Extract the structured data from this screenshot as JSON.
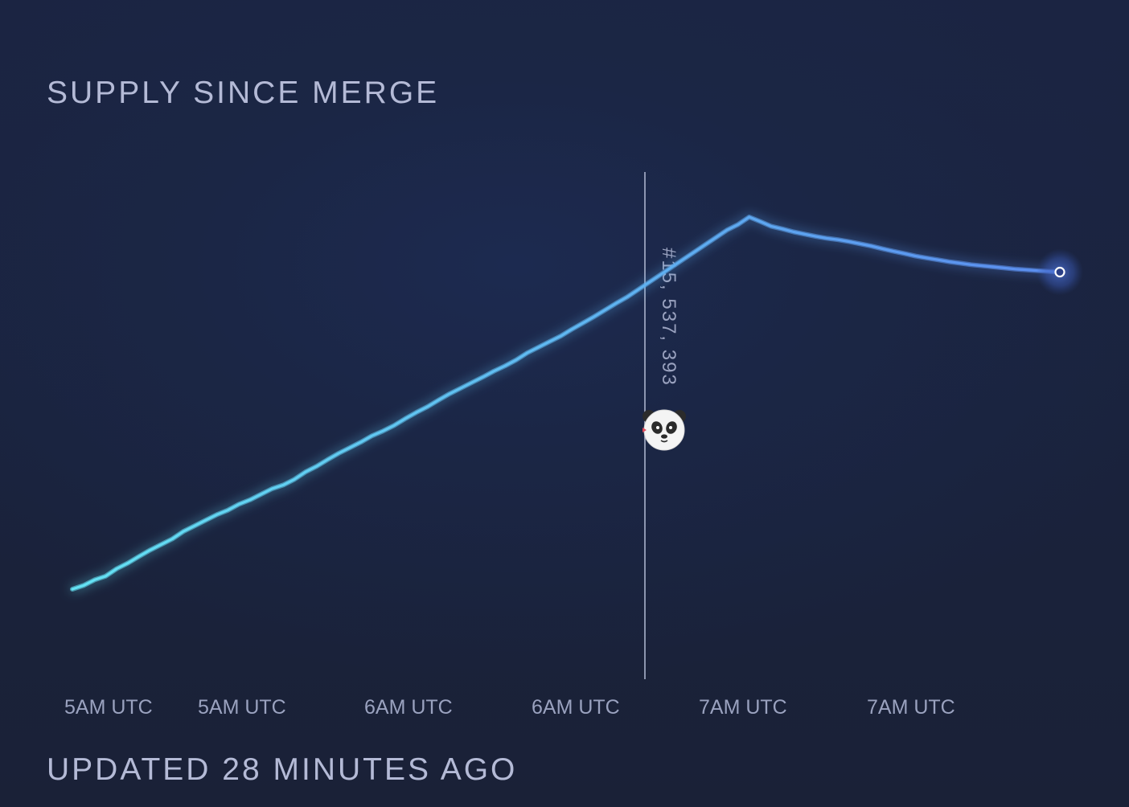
{
  "header": {
    "title": "SUPPLY SINCE MERGE"
  },
  "footer": {
    "updated": "UPDATED 28 MINUTES AGO"
  },
  "marker": {
    "block_label": "#15, 537, 393",
    "icon": "panda-icon"
  },
  "colors": {
    "line_start": "#64e3f4",
    "line_end": "#5b8df0",
    "background": "#1b2238",
    "marker_line": "#aab3cc"
  },
  "chart_data": {
    "type": "line",
    "title": "SUPPLY SINCE MERGE",
    "xlabel": "",
    "ylabel": "",
    "x_tick_labels": [
      "5AM UTC",
      "5AM UTC",
      "6AM UTC",
      "6AM UTC",
      "7AM UTC",
      "7AM UTC"
    ],
    "x": [
      0,
      2,
      4,
      6,
      8,
      10,
      12,
      14,
      16,
      18,
      20,
      22,
      24,
      26,
      28,
      30,
      32,
      34,
      36,
      38,
      40,
      42,
      44,
      46,
      48,
      50,
      52,
      54,
      56,
      58,
      60,
      62,
      64,
      66,
      68,
      70,
      72,
      74,
      76,
      78,
      80,
      82,
      84,
      86,
      88,
      90,
      92,
      94,
      96,
      98,
      100,
      102,
      104,
      106,
      108,
      110,
      112,
      114,
      116,
      118,
      120,
      122,
      124,
      126,
      128,
      130,
      132,
      134,
      136,
      138,
      140,
      142,
      144,
      146,
      148,
      150,
      152,
      154,
      156,
      158,
      160,
      162,
      164,
      166,
      168,
      170,
      172,
      174,
      176,
      178
    ],
    "values": [
      0.0,
      1.0,
      2.5,
      3.5,
      5.5,
      7.0,
      8.8,
      10.5,
      12.0,
      13.5,
      15.5,
      17.0,
      18.5,
      20.0,
      21.2,
      22.8,
      24.0,
      25.5,
      27.0,
      28.0,
      29.5,
      31.5,
      33.0,
      34.8,
      36.5,
      38.0,
      39.5,
      41.2,
      42.5,
      44.0,
      45.8,
      47.5,
      49.0,
      50.8,
      52.5,
      54.0,
      55.5,
      57.0,
      58.6,
      60.0,
      61.6,
      63.5,
      65.0,
      66.5,
      68.0,
      69.8,
      71.5,
      73.2,
      75.0,
      76.8,
      78.5,
      80.5,
      82.5,
      84.5,
      86.5,
      88.5,
      90.5,
      92.5,
      94.5,
      96.5,
      98.0,
      100.0,
      98.8,
      97.5,
      96.8,
      96.0,
      95.4,
      94.8,
      94.3,
      93.9,
      93.4,
      92.8,
      92.2,
      91.5,
      90.8,
      90.2,
      89.5,
      89.0,
      88.5,
      88.0,
      87.6,
      87.2,
      86.9,
      86.6,
      86.3,
      86.0,
      85.8,
      85.6,
      85.4,
      85.2
    ],
    "y_range_note": "relative supply level, 0 = start, 100 = peak at merge block",
    "merge_index": 61,
    "annotation": "#15, 537, 393",
    "grid": false,
    "legend": "none"
  }
}
